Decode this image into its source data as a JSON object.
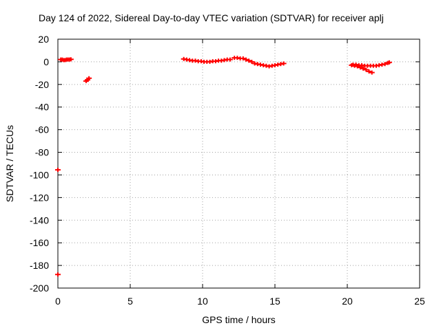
{
  "chart_data": {
    "type": "scatter",
    "title": "Day 124 of 2022, Sidereal Day-to-day VTEC variation (SDTVAR) for receiver aplj",
    "xlabel": "GPS time / hours",
    "ylabel": "SDTVAR / TECUs",
    "xlim": [
      0,
      25
    ],
    "ylim": [
      -200,
      20
    ],
    "xticks": [
      0,
      5,
      10,
      15,
      20,
      25
    ],
    "yticks": [
      20,
      0,
      -20,
      -40,
      -60,
      -80,
      -100,
      -120,
      -140,
      -160,
      -180,
      -200
    ],
    "grid": true,
    "marker_color": "#ff0000",
    "series": [
      {
        "points": [
          [
            0.0,
            -95.5
          ],
          [
            0.0,
            -188.0
          ],
          [
            0.2,
            2.0
          ],
          [
            0.3,
            2.0
          ],
          [
            0.4,
            1.5
          ],
          [
            0.5,
            1.5
          ],
          [
            0.6,
            2.0
          ],
          [
            0.7,
            2.0
          ],
          [
            0.8,
            2.0
          ],
          [
            0.9,
            2.2
          ],
          [
            1.95,
            -17.0
          ],
          [
            2.05,
            -16.0
          ],
          [
            2.15,
            -14.5
          ],
          [
            8.7,
            2.5
          ],
          [
            8.9,
            2.0
          ],
          [
            9.1,
            1.5
          ],
          [
            9.3,
            1.0
          ],
          [
            9.5,
            1.0
          ],
          [
            9.7,
            0.5
          ],
          [
            9.9,
            0.5
          ],
          [
            10.1,
            0.0
          ],
          [
            10.3,
            0.0
          ],
          [
            10.5,
            0.0
          ],
          [
            10.7,
            0.5
          ],
          [
            10.9,
            0.5
          ],
          [
            11.1,
            1.0
          ],
          [
            11.3,
            1.0
          ],
          [
            11.5,
            1.5
          ],
          [
            11.7,
            2.0
          ],
          [
            11.9,
            2.0
          ],
          [
            12.2,
            3.5
          ],
          [
            12.4,
            3.5
          ],
          [
            12.6,
            3.0
          ],
          [
            12.8,
            3.0
          ],
          [
            13.0,
            2.0
          ],
          [
            13.2,
            1.0
          ],
          [
            13.4,
            0.0
          ],
          [
            13.6,
            -1.5
          ],
          [
            13.8,
            -2.0
          ],
          [
            14.0,
            -2.5
          ],
          [
            14.2,
            -3.0
          ],
          [
            14.4,
            -3.5
          ],
          [
            14.6,
            -4.0
          ],
          [
            14.8,
            -3.5
          ],
          [
            15.0,
            -3.0
          ],
          [
            15.2,
            -2.5
          ],
          [
            15.4,
            -2.0
          ],
          [
            15.6,
            -1.5
          ],
          [
            20.3,
            -3.0
          ],
          [
            20.5,
            -3.5
          ],
          [
            20.7,
            -4.0
          ],
          [
            20.9,
            -5.0
          ],
          [
            21.1,
            -6.0
          ],
          [
            21.3,
            -7.0
          ],
          [
            21.5,
            -8.5
          ],
          [
            21.7,
            -9.5
          ],
          [
            20.4,
            -2.5
          ],
          [
            20.6,
            -2.5
          ],
          [
            20.8,
            -3.0
          ],
          [
            21.0,
            -3.0
          ],
          [
            21.2,
            -3.5
          ],
          [
            21.4,
            -3.5
          ],
          [
            21.6,
            -3.5
          ],
          [
            21.8,
            -3.5
          ],
          [
            22.0,
            -3.5
          ],
          [
            22.2,
            -3.0
          ],
          [
            22.4,
            -2.5
          ],
          [
            22.6,
            -2.0
          ],
          [
            22.8,
            -1.0
          ],
          [
            22.9,
            -0.5
          ]
        ]
      }
    ]
  }
}
